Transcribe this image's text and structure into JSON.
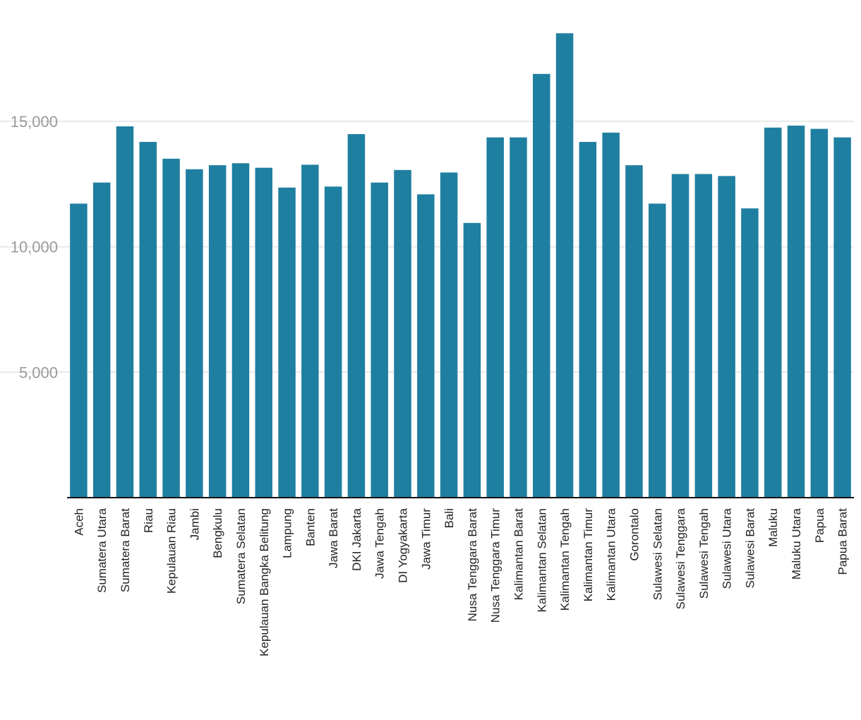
{
  "chart_data": {
    "type": "bar",
    "title": "",
    "xlabel": "",
    "ylabel": "",
    "ylim": [
      0,
      18500
    ],
    "yticks": [
      5000,
      10000,
      15000
    ],
    "ytick_labels": [
      "5,000",
      "10,000",
      "15,000"
    ],
    "grid": true,
    "legend": "none",
    "bar_color": "#1f7fa0",
    "categories": [
      "Aceh",
      "Sumatera Utara",
      "Sumatera Barat",
      "Riau",
      "Kepulauan Riau",
      "Jambi",
      "Bengkulu",
      "Sumatera Selatan",
      "Kepulauan Bangka Belitung",
      "Lampung",
      "Banten",
      "Jawa Barat",
      "DKI Jakarta",
      "Jawa Tengah",
      "DI Yogyakarta",
      "Jawa Timur",
      "Bali",
      "Nusa Tenggara Barat",
      "Nusa Tenggara Timur",
      "Kalimantan Barat",
      "Kalimantan Selatan",
      "Kalimantan Tengah",
      "Kalimantan Timur",
      "Kalimantan Utara",
      "Gorontalo",
      "Sulawesi Selatan",
      "Sulawesi Tenggara",
      "Sulawesi Tengah",
      "Sulawesi Utara",
      "Sulawesi Barat",
      "Maluku",
      "Maluku Utara",
      "Papua",
      "Papua Barat"
    ],
    "values": [
      11720,
      12560,
      14800,
      14180,
      13510,
      13090,
      13250,
      13330,
      13150,
      12360,
      13270,
      12400,
      14490,
      12560,
      13060,
      12090,
      12960,
      10950,
      14360,
      14360,
      16890,
      18510,
      14180,
      14550,
      13250,
      11720,
      12900,
      12900,
      12820,
      11530,
      14750,
      14830,
      14700,
      14360
    ]
  }
}
